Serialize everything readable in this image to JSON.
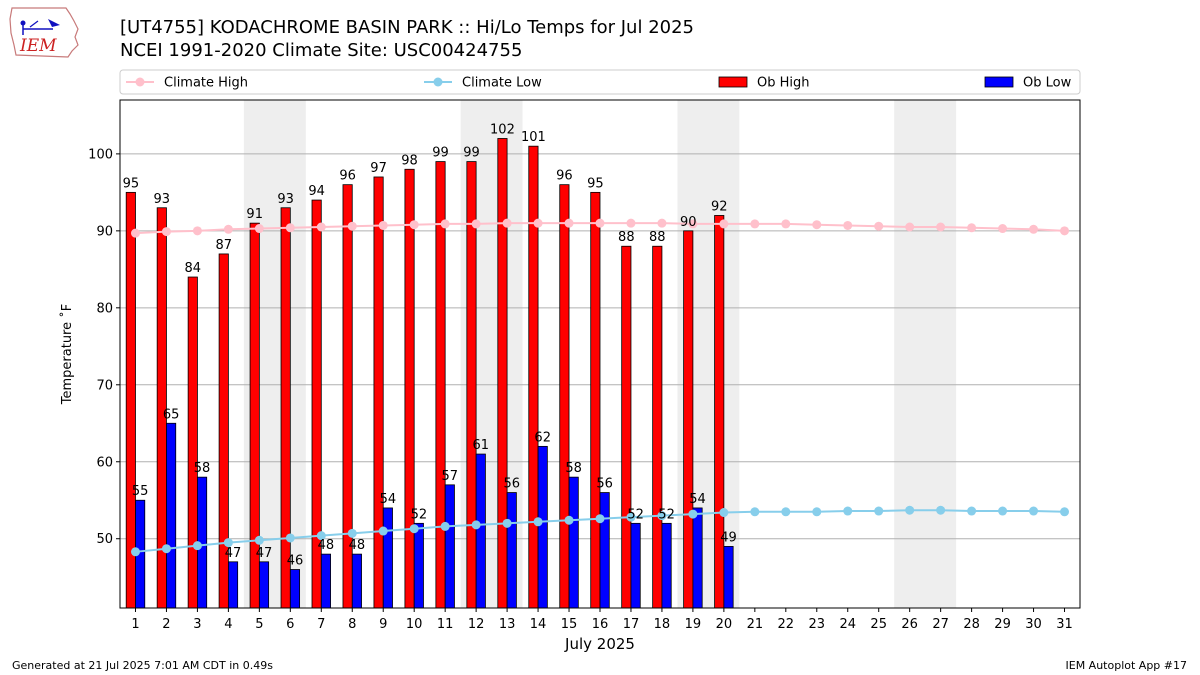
{
  "header": {
    "title_line1": "[UT4755] KODACHROME BASIN PARK :: Hi/Lo Temps for Jul 2025",
    "title_line2": "NCEI 1991-2020 Climate Site: USC00424755"
  },
  "logo": {
    "text": "IEM"
  },
  "footer": {
    "generated": "Generated at 21 Jul 2025 7:01 AM CDT in 0.49s",
    "app": "IEM Autoplot App #17"
  },
  "colors": {
    "ob_high": "#ff0000",
    "ob_low": "#0000ff",
    "climate_high": "#ffc0cb",
    "climate_low": "#87ceeb",
    "weekend_shade": "#eeeeee",
    "grid": "#b0b0b0"
  },
  "chart_data": {
    "type": "bar",
    "xlabel": "July 2025",
    "ylabel": "Temperature ˚F",
    "ylim": [
      41,
      107
    ],
    "yticks": [
      50,
      60,
      70,
      80,
      90,
      100
    ],
    "grid": "horizontal",
    "legend_placement": "top",
    "days": [
      1,
      2,
      3,
      4,
      5,
      6,
      7,
      8,
      9,
      10,
      11,
      12,
      13,
      14,
      15,
      16,
      17,
      18,
      19,
      20,
      21,
      22,
      23,
      24,
      25,
      26,
      27,
      28,
      29,
      30,
      31
    ],
    "weekend_shading": [
      [
        5,
        6
      ],
      [
        12,
        13
      ],
      [
        19,
        20
      ],
      [
        26,
        27
      ]
    ],
    "series": [
      {
        "name": "Climate High",
        "kind": "line",
        "values": [
          89.7,
          89.9,
          90.0,
          90.2,
          90.3,
          90.4,
          90.5,
          90.6,
          90.7,
          90.8,
          90.9,
          90.9,
          91.0,
          91.0,
          91.0,
          91.0,
          91.0,
          91.0,
          90.9,
          90.9,
          90.9,
          90.9,
          90.8,
          90.7,
          90.6,
          90.5,
          90.5,
          90.4,
          90.3,
          90.2,
          90.0
        ]
      },
      {
        "name": "Climate Low",
        "kind": "line",
        "values": [
          48.3,
          48.7,
          49.1,
          49.5,
          49.8,
          50.1,
          50.4,
          50.7,
          51.0,
          51.3,
          51.6,
          51.8,
          52.0,
          52.2,
          52.4,
          52.6,
          52.8,
          53.0,
          53.2,
          53.4,
          53.5,
          53.5,
          53.5,
          53.6,
          53.6,
          53.7,
          53.7,
          53.6,
          53.6,
          53.6,
          53.5
        ]
      },
      {
        "name": "Ob High",
        "kind": "bar",
        "values": [
          95,
          93,
          84,
          87,
          91,
          93,
          94,
          96,
          97,
          98,
          99,
          99,
          102,
          101,
          96,
          95,
          88,
          88,
          90,
          92
        ]
      },
      {
        "name": "Ob Low",
        "kind": "bar",
        "values": [
          55,
          65,
          58,
          47,
          47,
          46,
          48,
          48,
          54,
          52,
          57,
          61,
          56,
          62,
          58,
          56,
          52,
          52,
          54,
          49
        ]
      }
    ]
  }
}
